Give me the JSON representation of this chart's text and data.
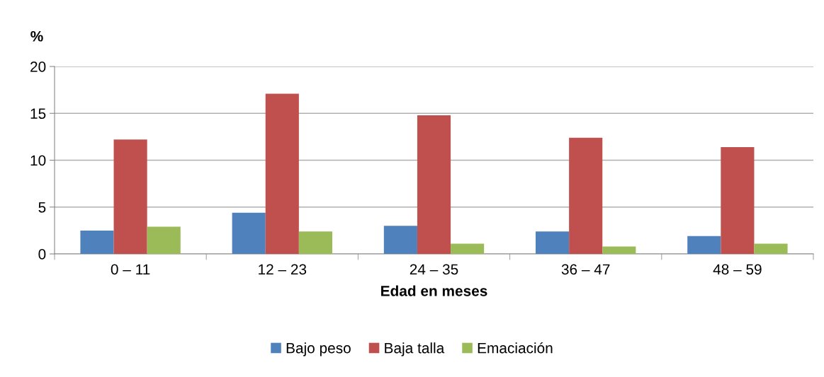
{
  "chart_data": {
    "type": "bar",
    "ylabel": "%",
    "xlabel": "Edad en meses",
    "categories": [
      "0 – 11",
      "12 – 23",
      "24 – 35",
      "36 – 47",
      "48 – 59"
    ],
    "series": [
      {
        "name": "Bajo peso",
        "color": "#4f81bd",
        "values": [
          2.5,
          4.4,
          3.0,
          2.4,
          1.9
        ]
      },
      {
        "name": "Baja talla",
        "color": "#c0504d",
        "values": [
          12.2,
          17.1,
          14.8,
          12.4,
          11.4
        ]
      },
      {
        "name": "Emaciación",
        "color": "#9bbb59",
        "values": [
          2.9,
          2.4,
          1.1,
          0.8,
          1.1
        ]
      }
    ],
    "ylim": [
      0,
      20
    ],
    "yticks": [
      0,
      5,
      10,
      15,
      20
    ],
    "grid": "y",
    "legend": "bottom"
  }
}
